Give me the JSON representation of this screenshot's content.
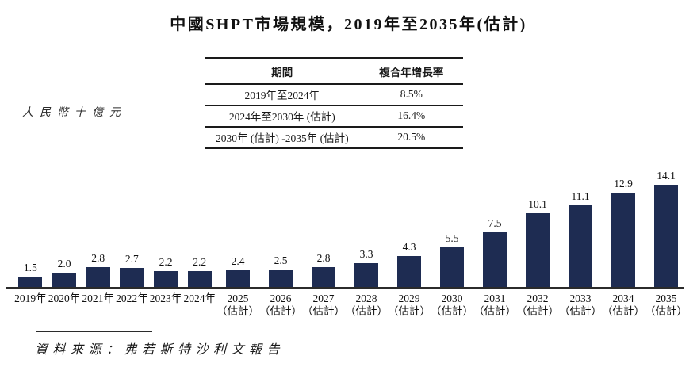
{
  "title": "中國SHPT市場規模，2019年至2035年(估計)",
  "unit_label": "人民幣十億元",
  "cagr_table": {
    "header": {
      "period": "期間",
      "cagr": "複合年增長率"
    },
    "rows": [
      {
        "period": "2019年至2024年",
        "cagr": "8.5%"
      },
      {
        "period": "2024年至2030年 (估計)",
        "cagr": "16.4%"
      },
      {
        "period": "2030年 (估計) -2035年 (估計)",
        "cagr": "20.5%"
      }
    ]
  },
  "source": "資料來源：弗若斯特沙利文報告",
  "chart_data": {
    "type": "bar",
    "title": "中國SHPT市場規模，2019年至2035年(估計)",
    "ylabel": "人民幣十億元",
    "categories": [
      "2019年",
      "2020年",
      "2021年",
      "2022年",
      "2023年",
      "2024年",
      "2025\n（估計）",
      "2026\n（估計）",
      "2027\n（估計）",
      "2028\n（估計）",
      "2029\n（估計）",
      "2030\n（估計）",
      "2031\n（估計）",
      "2032\n（估計）",
      "2033\n（估計）",
      "2034\n（估計）",
      "2035\n（估計）"
    ],
    "values": [
      1.5,
      2.0,
      2.8,
      2.7,
      2.2,
      2.2,
      2.4,
      2.5,
      2.8,
      3.3,
      4.3,
      5.5,
      7.5,
      10.1,
      11.1,
      12.9,
      14.1
    ],
    "value_label_decimals": 1,
    "ylim": [
      0,
      15
    ],
    "grid": false,
    "legend": false,
    "bar_color": "#1e2c52",
    "value_labels_shown": true
  }
}
